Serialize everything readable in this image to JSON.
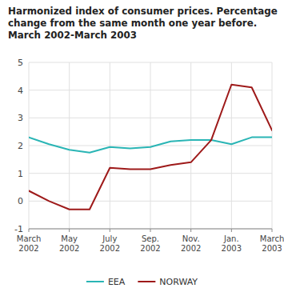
{
  "chart_data": {
    "type": "line",
    "title": "Harmonized index of consumer prices. Percentage\nchange from the same month one year before.\nMarch 2002-March 2003",
    "categories": [
      "March\n2002",
      null,
      "May\n2002",
      null,
      "July\n2002",
      null,
      "Sep.\n2002",
      null,
      "Nov.\n2002",
      null,
      "Jan.\n2003",
      null,
      "March\n2003"
    ],
    "series": [
      {
        "name": "EEA",
        "color": "#2ab5b5",
        "values": [
          2.3,
          2.05,
          1.85,
          1.75,
          1.95,
          1.9,
          1.95,
          2.15,
          2.2,
          2.2,
          2.05,
          2.3,
          2.3
        ]
      },
      {
        "name": "NORWAY",
        "color": "#9e1a1a",
        "values": [
          0.37,
          0.0,
          -0.3,
          -0.3,
          1.2,
          1.15,
          1.15,
          1.3,
          1.4,
          2.2,
          4.2,
          4.1,
          2.55
        ]
      }
    ],
    "ylim": [
      -1,
      5
    ],
    "yticks": [
      -1,
      0,
      1,
      2,
      3,
      4,
      5
    ],
    "grid": true,
    "legend": "bottom"
  }
}
